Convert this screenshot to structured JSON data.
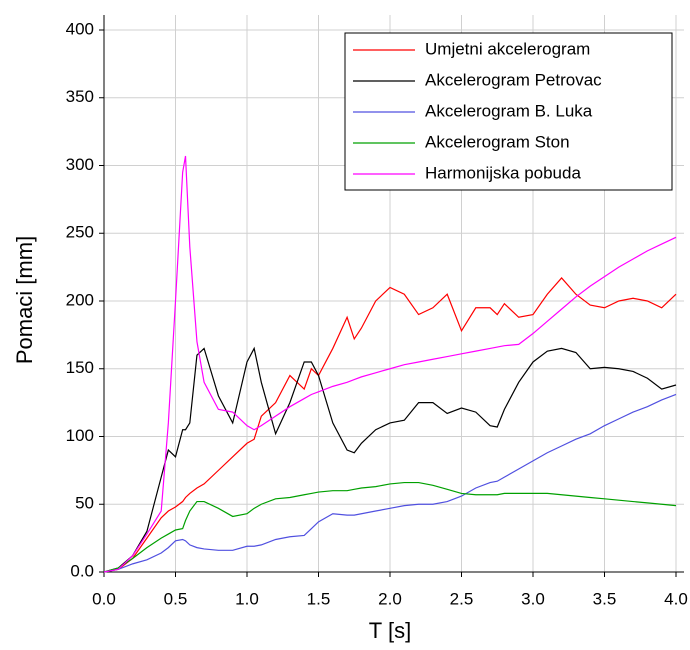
{
  "chart_data": {
    "type": "line",
    "xlabel": "T [s]",
    "ylabel": "Pomaci  [mm]",
    "x": [
      0,
      0.1,
      0.2,
      0.3,
      0.4,
      0.45,
      0.5,
      0.55,
      0.57,
      0.6,
      0.65,
      0.7,
      0.8,
      0.9,
      1.0,
      1.05,
      1.1,
      1.2,
      1.3,
      1.4,
      1.45,
      1.5,
      1.6,
      1.7,
      1.75,
      1.8,
      1.9,
      2.0,
      2.1,
      2.2,
      2.3,
      2.4,
      2.5,
      2.6,
      2.7,
      2.75,
      2.8,
      2.9,
      3.0,
      3.1,
      3.2,
      3.3,
      3.4,
      3.5,
      3.6,
      3.7,
      3.8,
      3.9,
      4.0
    ],
    "series": [
      {
        "name": "Umjetni akcelerogram",
        "color": "#ff0000",
        "values": [
          0,
          2,
          10,
          25,
          40,
          45,
          48,
          52,
          55,
          58,
          62,
          65,
          75,
          85,
          95,
          98,
          115,
          125,
          145,
          135,
          150,
          145,
          165,
          188,
          172,
          180,
          200,
          210,
          205,
          190,
          195,
          205,
          178,
          195,
          195,
          190,
          198,
          188,
          190,
          205,
          217,
          205,
          197,
          195,
          200,
          202,
          200,
          195,
          205
        ]
      },
      {
        "name": "Akcelerogram Petrovac",
        "color": "#000000",
        "values": [
          0,
          3,
          12,
          30,
          70,
          90,
          85,
          105,
          105,
          110,
          160,
          165,
          130,
          110,
          155,
          165,
          140,
          102,
          125,
          155,
          155,
          145,
          110,
          90,
          88,
          95,
          105,
          110,
          112,
          125,
          125,
          117,
          121,
          118,
          108,
          107,
          120,
          140,
          155,
          163,
          165,
          162,
          150,
          151,
          150,
          148,
          143,
          135,
          138
        ]
      },
      {
        "name": "Akcelerogram B. Luka",
        "color": "#5050e0",
        "values": [
          0,
          2,
          6,
          9,
          14,
          18,
          23,
          24,
          23,
          20,
          18,
          17,
          16,
          16,
          19,
          19,
          20,
          24,
          26,
          27,
          32,
          37,
          43,
          42,
          42,
          43,
          45,
          47,
          49,
          50,
          50,
          52,
          56,
          62,
          66,
          67,
          70,
          76,
          82,
          88,
          93,
          98,
          102,
          108,
          113,
          118,
          122,
          127,
          131
        ]
      },
      {
        "name": "Akcelerogram Ston",
        "color": "#00a000",
        "values": [
          0,
          3,
          10,
          18,
          25,
          28,
          31,
          32,
          38,
          45,
          52,
          52,
          47,
          41,
          43,
          47,
          50,
          54,
          55,
          57,
          58,
          59,
          60,
          60,
          61,
          62,
          63,
          65,
          66,
          66,
          64,
          61,
          58,
          57,
          57,
          57,
          58,
          58,
          58,
          58,
          57,
          56,
          55,
          54,
          53,
          52,
          51,
          50,
          49
        ]
      },
      {
        "name": "Harmonijska pobuda",
        "color": "#ff00ff",
        "values": [
          0,
          2,
          12,
          28,
          45,
          110,
          200,
          295,
          307,
          240,
          170,
          140,
          120,
          118,
          108,
          105,
          108,
          115,
          122,
          128,
          131,
          133,
          137,
          140,
          142,
          144,
          147,
          150,
          153,
          155,
          157,
          159,
          161,
          163,
          165,
          166,
          167,
          168,
          176,
          185,
          194,
          203,
          211,
          218,
          225,
          231,
          237,
          242,
          247
        ]
      }
    ],
    "xlim": [
      0,
      4
    ],
    "xticks": [
      {
        "value": 0,
        "label": "0.0"
      },
      0.5,
      {
        "value": 1,
        "label": "1.0"
      },
      1.5,
      {
        "value": 2,
        "label": "2.0"
      },
      2.5,
      {
        "value": 3,
        "label": "3.0"
      },
      3.5,
      {
        "value": 4,
        "label": "4.0"
      }
    ],
    "ylim": [
      0,
      400
    ],
    "yticks": [
      {
        "value": 0,
        "label": "0.0"
      },
      50,
      100,
      150,
      200,
      250,
      300,
      350,
      400
    ],
    "grid": true,
    "legend": "upper right"
  }
}
